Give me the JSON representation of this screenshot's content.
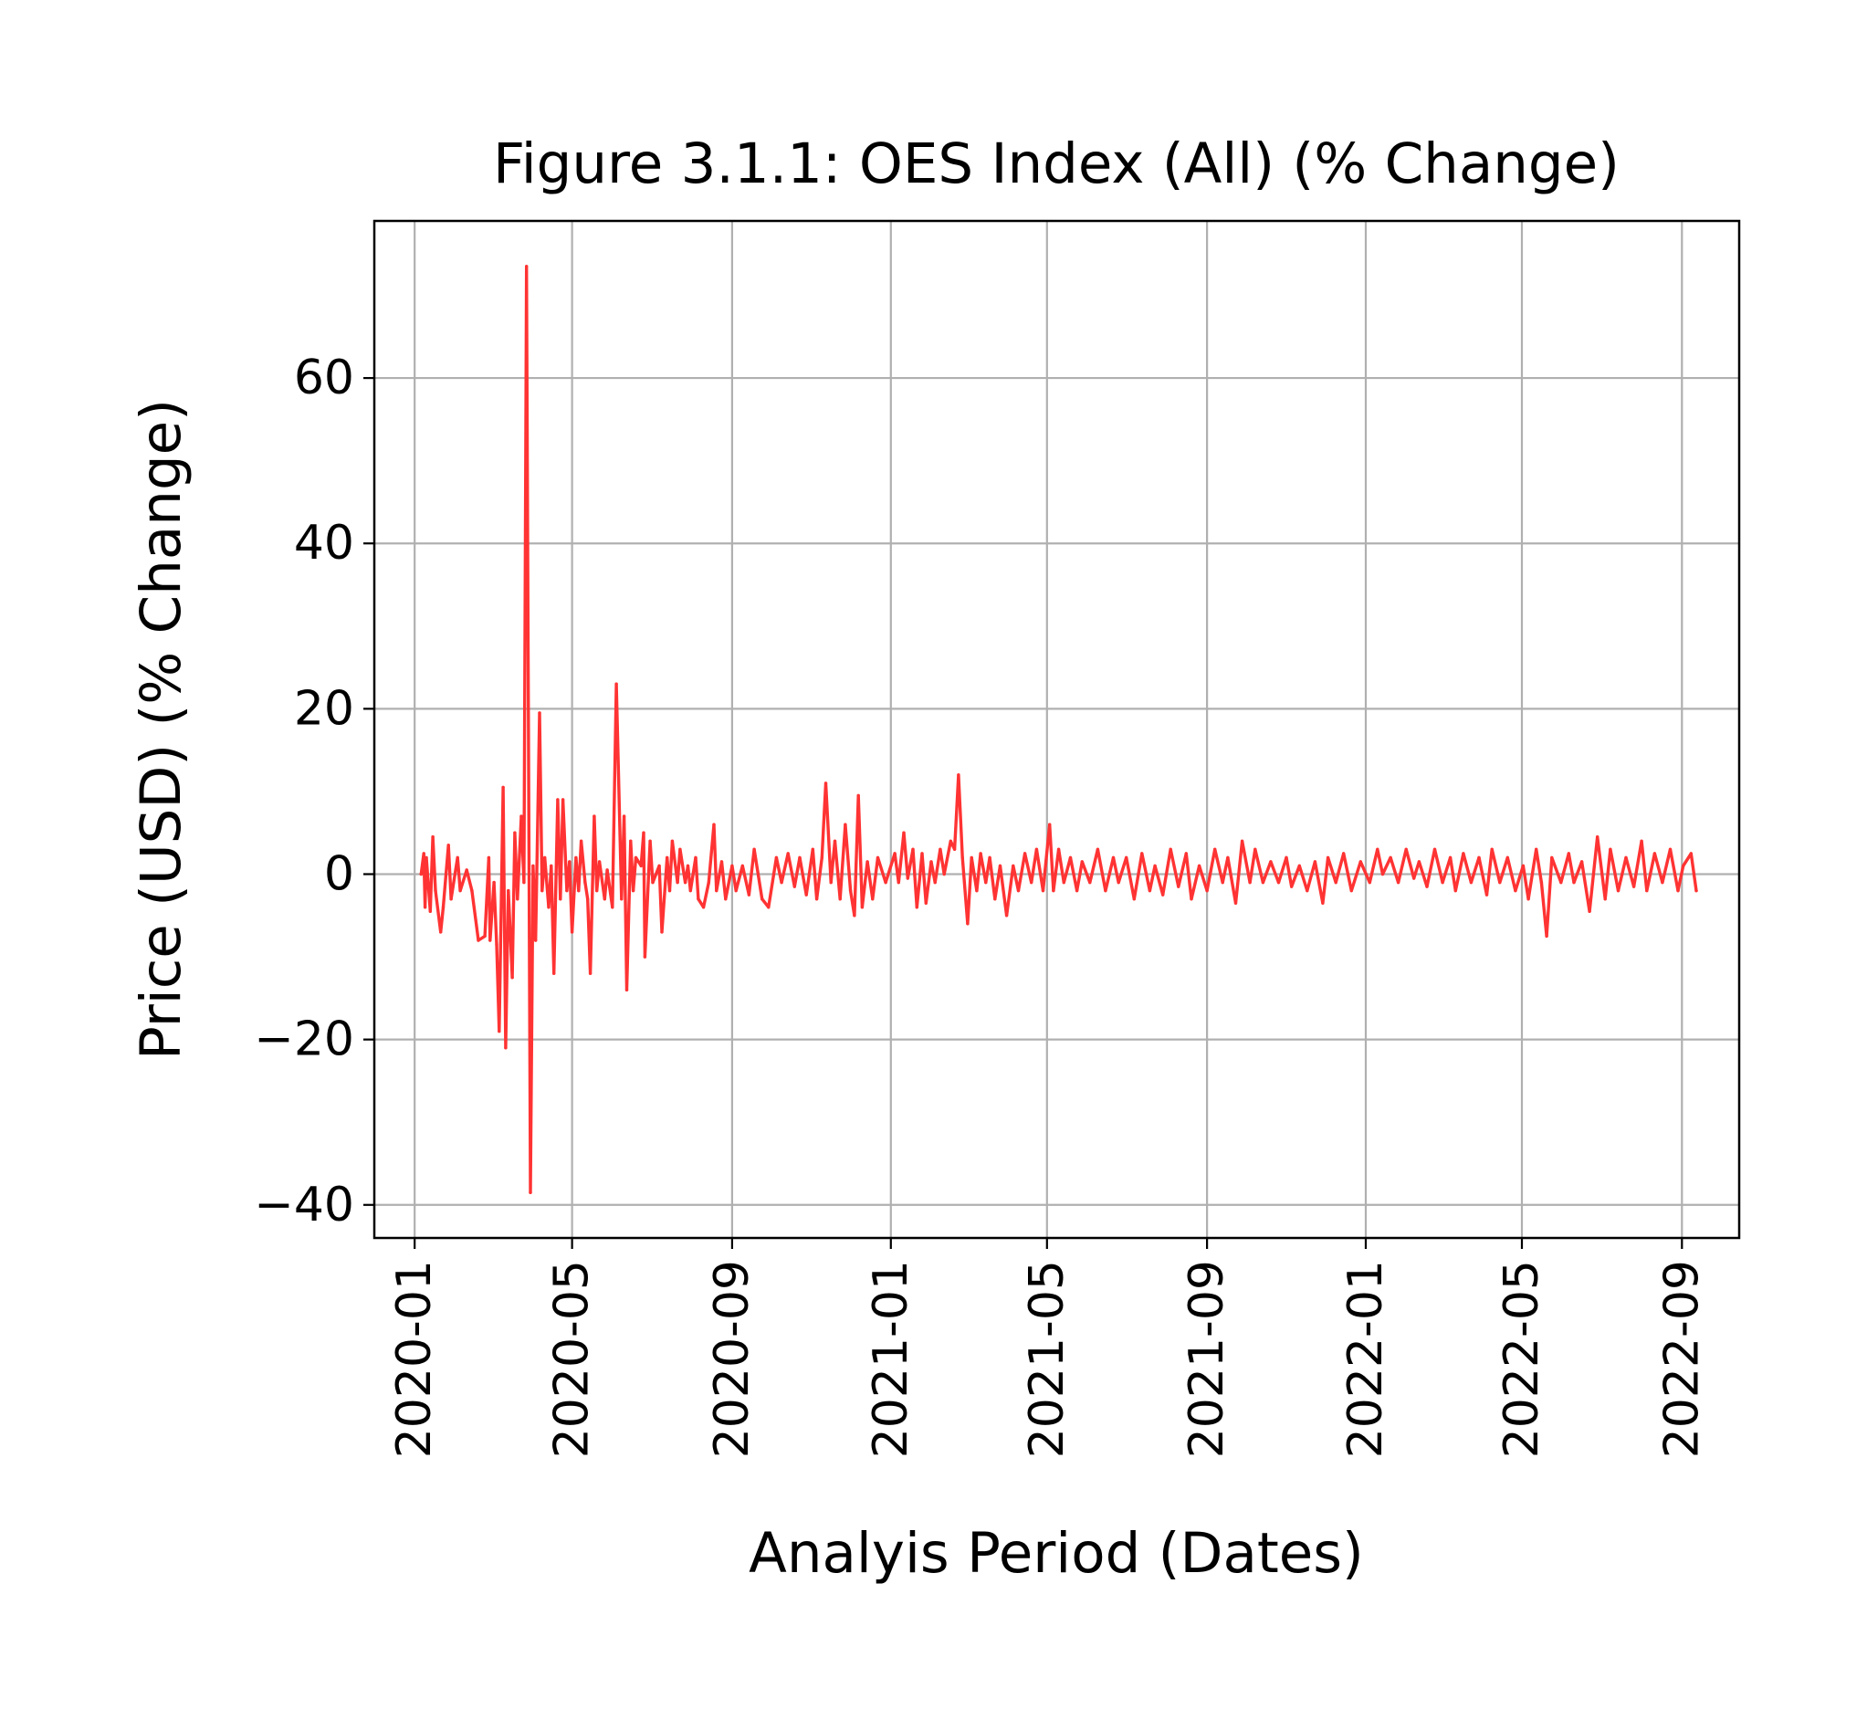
{
  "chart_data": {
    "type": "line",
    "title": "Figure 3.1.1: OES Index (All) (% Change)",
    "xlabel": "Analyis Period (Dates)",
    "ylabel": "Price (USD) (% Change)",
    "x_range": [
      "2019-12-01",
      "2022-10-15"
    ],
    "ylim": [
      -44,
      79
    ],
    "x_ticks": [
      {
        "date": "2020-01-01",
        "label": "2020-01"
      },
      {
        "date": "2020-05-01",
        "label": "2020-05"
      },
      {
        "date": "2020-09-01",
        "label": "2020-09"
      },
      {
        "date": "2021-01-01",
        "label": "2021-01"
      },
      {
        "date": "2021-05-01",
        "label": "2021-05"
      },
      {
        "date": "2021-09-01",
        "label": "2021-09"
      },
      {
        "date": "2022-01-01",
        "label": "2022-01"
      },
      {
        "date": "2022-05-01",
        "label": "2022-05"
      },
      {
        "date": "2022-09-01",
        "label": "2022-09"
      }
    ],
    "y_ticks": [
      {
        "value": 60,
        "label": "60"
      },
      {
        "value": 40,
        "label": "40"
      },
      {
        "value": 20,
        "label": "20"
      },
      {
        "value": 0,
        "label": "0"
      },
      {
        "value": -20,
        "label": "−20"
      },
      {
        "value": -40,
        "label": "−40"
      }
    ],
    "grid": true,
    "series": [
      {
        "color": "#ff3333",
        "points": [
          [
            "2020-01-06",
            0
          ],
          [
            "2020-01-08",
            2.5
          ],
          [
            "2020-01-09",
            -4
          ],
          [
            "2020-01-10",
            2
          ],
          [
            "2020-01-13",
            -4.5
          ],
          [
            "2020-01-15",
            4.5
          ],
          [
            "2020-01-17",
            -2
          ],
          [
            "2020-01-21",
            -7
          ],
          [
            "2020-01-23",
            -4
          ],
          [
            "2020-01-27",
            3.5
          ],
          [
            "2020-01-29",
            -3
          ],
          [
            "2020-02-03",
            2
          ],
          [
            "2020-02-05",
            -2
          ],
          [
            "2020-02-10",
            0.5
          ],
          [
            "2020-02-14",
            -2
          ],
          [
            "2020-02-19",
            -8
          ],
          [
            "2020-02-24",
            -7.5
          ],
          [
            "2020-02-27",
            2
          ],
          [
            "2020-02-28",
            -8
          ],
          [
            "2020-03-02",
            -1
          ],
          [
            "2020-03-04",
            -8.5
          ],
          [
            "2020-03-06",
            -19
          ],
          [
            "2020-03-09",
            10.5
          ],
          [
            "2020-03-11",
            -21
          ],
          [
            "2020-03-13",
            -2
          ],
          [
            "2020-03-16",
            -12.5
          ],
          [
            "2020-03-18",
            5
          ],
          [
            "2020-03-20",
            -3
          ],
          [
            "2020-03-23",
            7
          ],
          [
            "2020-03-25",
            -1
          ],
          [
            "2020-03-27",
            73.5
          ],
          [
            "2020-03-30",
            -38.5
          ],
          [
            "2020-04-01",
            1
          ],
          [
            "2020-04-03",
            -8
          ],
          [
            "2020-04-06",
            19.5
          ],
          [
            "2020-04-08",
            -2
          ],
          [
            "2020-04-10",
            2
          ],
          [
            "2020-04-13",
            -4
          ],
          [
            "2020-04-15",
            1
          ],
          [
            "2020-04-17",
            -12
          ],
          [
            "2020-04-20",
            9
          ],
          [
            "2020-04-22",
            -3
          ],
          [
            "2020-04-24",
            9
          ],
          [
            "2020-04-27",
            -2
          ],
          [
            "2020-04-29",
            1.5
          ],
          [
            "2020-05-01",
            -7
          ],
          [
            "2020-05-04",
            2
          ],
          [
            "2020-05-06",
            -2
          ],
          [
            "2020-05-08",
            4
          ],
          [
            "2020-05-11",
            -1
          ],
          [
            "2020-05-13",
            -3
          ],
          [
            "2020-05-15",
            -12
          ],
          [
            "2020-05-18",
            7
          ],
          [
            "2020-05-20",
            -2
          ],
          [
            "2020-05-22",
            1.5
          ],
          [
            "2020-05-26",
            -3
          ],
          [
            "2020-05-28",
            0.5
          ],
          [
            "2020-06-01",
            -4
          ],
          [
            "2020-06-04",
            23
          ],
          [
            "2020-06-08",
            -3
          ],
          [
            "2020-06-10",
            7
          ],
          [
            "2020-06-12",
            -14
          ],
          [
            "2020-06-15",
            4
          ],
          [
            "2020-06-17",
            -2
          ],
          [
            "2020-06-19",
            2
          ],
          [
            "2020-06-23",
            1
          ],
          [
            "2020-06-25",
            5
          ],
          [
            "2020-06-26",
            -10
          ],
          [
            "2020-06-30",
            4
          ],
          [
            "2020-07-02",
            -1
          ],
          [
            "2020-07-07",
            1
          ],
          [
            "2020-07-09",
            -7
          ],
          [
            "2020-07-13",
            2
          ],
          [
            "2020-07-15",
            -2
          ],
          [
            "2020-07-17",
            4
          ],
          [
            "2020-07-21",
            -1
          ],
          [
            "2020-07-23",
            3
          ],
          [
            "2020-07-27",
            -1
          ],
          [
            "2020-07-29",
            1
          ],
          [
            "2020-07-31",
            -2
          ],
          [
            "2020-08-04",
            2
          ],
          [
            "2020-08-06",
            -3
          ],
          [
            "2020-08-10",
            -4
          ],
          [
            "2020-08-14",
            -1
          ],
          [
            "2020-08-18",
            6
          ],
          [
            "2020-08-20",
            -2
          ],
          [
            "2020-08-24",
            1.5
          ],
          [
            "2020-08-27",
            -3
          ],
          [
            "2020-09-01",
            1
          ],
          [
            "2020-09-04",
            -2
          ],
          [
            "2020-09-09",
            1
          ],
          [
            "2020-09-14",
            -2.5
          ],
          [
            "2020-09-18",
            3
          ],
          [
            "2020-09-24",
            -3
          ],
          [
            "2020-09-29",
            -4
          ],
          [
            "2020-10-05",
            2
          ],
          [
            "2020-10-09",
            -1
          ],
          [
            "2020-10-14",
            2.5
          ],
          [
            "2020-10-19",
            -1.5
          ],
          [
            "2020-10-23",
            2
          ],
          [
            "2020-10-28",
            -2.5
          ],
          [
            "2020-11-02",
            3
          ],
          [
            "2020-11-05",
            -3
          ],
          [
            "2020-11-09",
            2
          ],
          [
            "2020-11-12",
            11
          ],
          [
            "2020-11-16",
            -1
          ],
          [
            "2020-11-19",
            4
          ],
          [
            "2020-11-23",
            -3
          ],
          [
            "2020-11-27",
            6
          ],
          [
            "2020-12-01",
            -2
          ],
          [
            "2020-12-04",
            -5
          ],
          [
            "2020-12-07",
            9.5
          ],
          [
            "2020-12-10",
            -4
          ],
          [
            "2020-12-14",
            1.5
          ],
          [
            "2020-12-18",
            -3
          ],
          [
            "2020-12-22",
            2
          ],
          [
            "2020-12-28",
            -1
          ],
          [
            "2021-01-04",
            2.5
          ],
          [
            "2021-01-07",
            -1
          ],
          [
            "2021-01-11",
            5
          ],
          [
            "2021-01-14",
            -0.5
          ],
          [
            "2021-01-18",
            3
          ],
          [
            "2021-01-21",
            -4
          ],
          [
            "2021-01-25",
            2.5
          ],
          [
            "2021-01-28",
            -3.5
          ],
          [
            "2021-02-01",
            1.5
          ],
          [
            "2021-02-04",
            -1
          ],
          [
            "2021-02-08",
            3
          ],
          [
            "2021-02-11",
            0
          ],
          [
            "2021-02-16",
            4
          ],
          [
            "2021-02-19",
            3
          ],
          [
            "2021-02-22",
            12
          ],
          [
            "2021-02-25",
            2
          ],
          [
            "2021-03-01",
            -6
          ],
          [
            "2021-03-04",
            2
          ],
          [
            "2021-03-08",
            -2
          ],
          [
            "2021-03-11",
            2.5
          ],
          [
            "2021-03-15",
            -1
          ],
          [
            "2021-03-18",
            2
          ],
          [
            "2021-03-22",
            -3
          ],
          [
            "2021-03-26",
            1
          ],
          [
            "2021-03-31",
            -5
          ],
          [
            "2021-04-05",
            1
          ],
          [
            "2021-04-09",
            -2
          ],
          [
            "2021-04-14",
            2.5
          ],
          [
            "2021-04-19",
            -1
          ],
          [
            "2021-04-23",
            3
          ],
          [
            "2021-04-28",
            -2
          ],
          [
            "2021-05-03",
            6
          ],
          [
            "2021-05-06",
            -2
          ],
          [
            "2021-05-10",
            3
          ],
          [
            "2021-05-14",
            -1
          ],
          [
            "2021-05-19",
            2
          ],
          [
            "2021-05-24",
            -2
          ],
          [
            "2021-05-28",
            1.5
          ],
          [
            "2021-06-03",
            -1
          ],
          [
            "2021-06-09",
            3
          ],
          [
            "2021-06-15",
            -2
          ],
          [
            "2021-06-21",
            2
          ],
          [
            "2021-06-25",
            -1
          ],
          [
            "2021-07-01",
            2
          ],
          [
            "2021-07-07",
            -3
          ],
          [
            "2021-07-13",
            2.5
          ],
          [
            "2021-07-19",
            -2
          ],
          [
            "2021-07-23",
            1
          ],
          [
            "2021-07-29",
            -2.5
          ],
          [
            "2021-08-04",
            3
          ],
          [
            "2021-08-10",
            -1.5
          ],
          [
            "2021-08-16",
            2.5
          ],
          [
            "2021-08-20",
            -3
          ],
          [
            "2021-08-26",
            1
          ],
          [
            "2021-09-01",
            -2
          ],
          [
            "2021-09-07",
            3
          ],
          [
            "2021-09-13",
            -1
          ],
          [
            "2021-09-17",
            2
          ],
          [
            "2021-09-23",
            -3.5
          ],
          [
            "2021-09-28",
            4
          ],
          [
            "2021-10-04",
            -1
          ],
          [
            "2021-10-08",
            3
          ],
          [
            "2021-10-14",
            -1
          ],
          [
            "2021-10-20",
            1.5
          ],
          [
            "2021-10-26",
            -1
          ],
          [
            "2021-11-01",
            2
          ],
          [
            "2021-11-05",
            -1.5
          ],
          [
            "2021-11-11",
            1
          ],
          [
            "2021-11-17",
            -2
          ],
          [
            "2021-11-23",
            1.5
          ],
          [
            "2021-11-29",
            -3.5
          ],
          [
            "2021-12-03",
            2
          ],
          [
            "2021-12-09",
            -1
          ],
          [
            "2021-12-15",
            2.5
          ],
          [
            "2021-12-21",
            -2
          ],
          [
            "2021-12-28",
            1.5
          ],
          [
            "2022-01-04",
            -1
          ],
          [
            "2022-01-10",
            3
          ],
          [
            "2022-01-14",
            0
          ],
          [
            "2022-01-20",
            2
          ],
          [
            "2022-01-26",
            -1
          ],
          [
            "2022-02-01",
            3
          ],
          [
            "2022-02-07",
            -0.5
          ],
          [
            "2022-02-11",
            1.5
          ],
          [
            "2022-02-17",
            -1.5
          ],
          [
            "2022-02-23",
            3
          ],
          [
            "2022-03-01",
            -1
          ],
          [
            "2022-03-07",
            2
          ],
          [
            "2022-03-11",
            -2
          ],
          [
            "2022-03-17",
            2.5
          ],
          [
            "2022-03-23",
            -1
          ],
          [
            "2022-03-29",
            2
          ],
          [
            "2022-04-04",
            -2.5
          ],
          [
            "2022-04-08",
            3
          ],
          [
            "2022-04-14",
            -1
          ],
          [
            "2022-04-20",
            2
          ],
          [
            "2022-04-26",
            -2
          ],
          [
            "2022-05-02",
            1
          ],
          [
            "2022-05-06",
            -3
          ],
          [
            "2022-05-12",
            3
          ],
          [
            "2022-05-16",
            -1
          ],
          [
            "2022-05-20",
            -7.5
          ],
          [
            "2022-05-24",
            2
          ],
          [
            "2022-05-31",
            -1
          ],
          [
            "2022-06-06",
            2.5
          ],
          [
            "2022-06-10",
            -1
          ],
          [
            "2022-06-16",
            1.5
          ],
          [
            "2022-06-22",
            -4.5
          ],
          [
            "2022-06-28",
            4.5
          ],
          [
            "2022-07-04",
            -3
          ],
          [
            "2022-07-08",
            3
          ],
          [
            "2022-07-14",
            -2
          ],
          [
            "2022-07-20",
            2
          ],
          [
            "2022-07-26",
            -1.5
          ],
          [
            "2022-08-01",
            4
          ],
          [
            "2022-08-05",
            -2
          ],
          [
            "2022-08-11",
            2.5
          ],
          [
            "2022-08-17",
            -1
          ],
          [
            "2022-08-23",
            3
          ],
          [
            "2022-08-29",
            -2
          ],
          [
            "2022-09-02",
            1
          ],
          [
            "2022-09-08",
            2.5
          ],
          [
            "2022-09-12",
            -2
          ]
        ]
      }
    ]
  }
}
